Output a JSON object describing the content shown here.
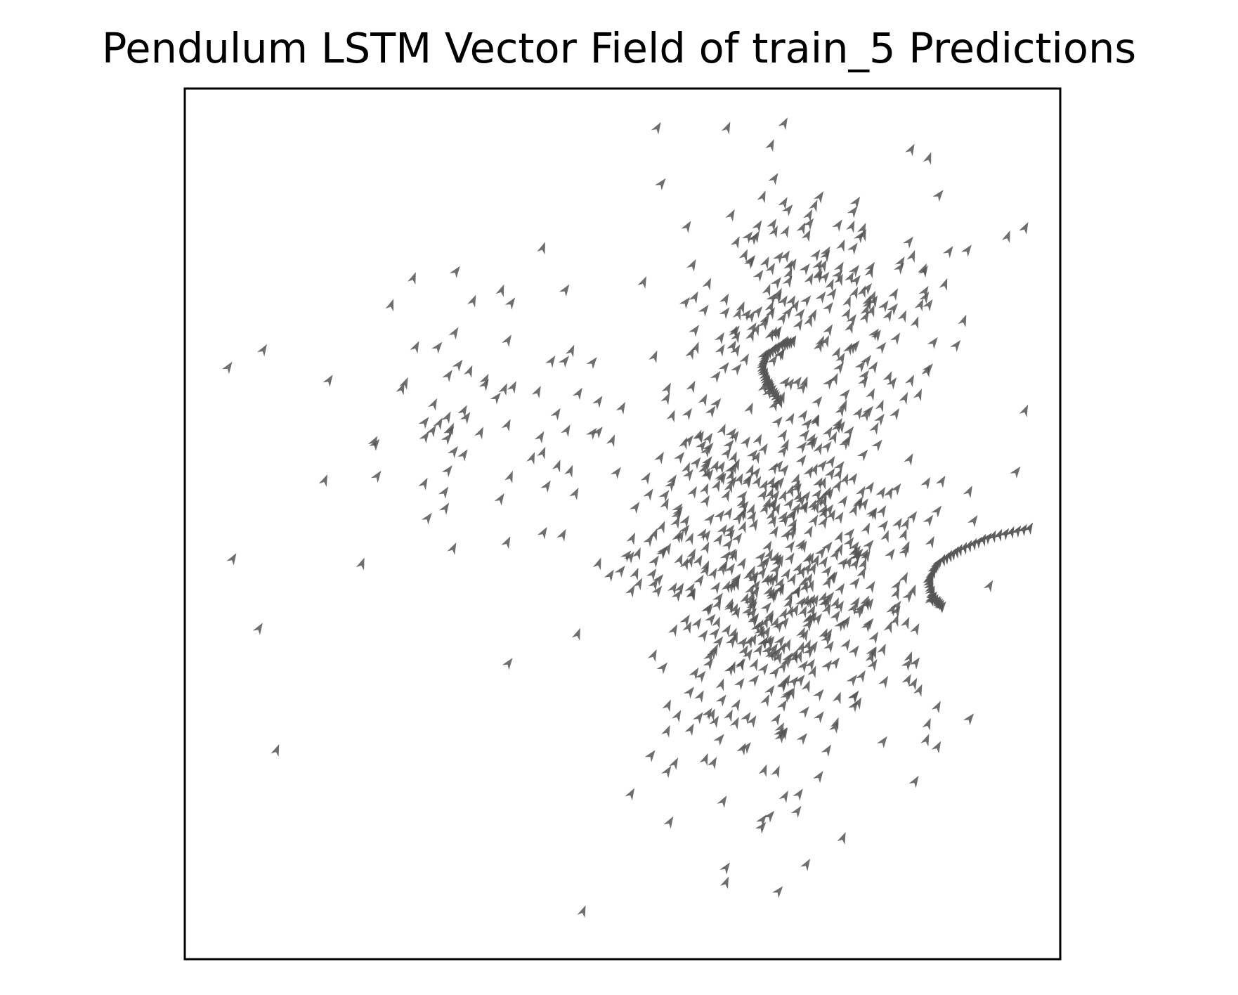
{
  "chart_data": {
    "type": "quiver",
    "title": "Pendulum LSTM Vector Field of train_5  Predictions",
    "xlabel": "",
    "ylabel": "",
    "xlim": [
      0,
      100
    ],
    "ylim": [
      0,
      100
    ],
    "ticks": "none",
    "grid": false,
    "legend": "none",
    "arrow_color": "#555555",
    "frame_color": "#000000",
    "arrow_direction_deg": 60,
    "seed": 5,
    "clusters": [
      {
        "cx": 68,
        "cy": 45,
        "sx": 8.5,
        "sy": 11.0,
        "n": 620
      },
      {
        "cx": 72,
        "cy": 76,
        "sx": 8.0,
        "sy": 6.5,
        "n": 180
      },
      {
        "cx": 37,
        "cy": 62,
        "sx": 8.5,
        "sy": 7.0,
        "n": 70
      }
    ],
    "outliers": [
      [
        5,
        68
      ],
      [
        9,
        70
      ],
      [
        16.5,
        66.5
      ],
      [
        16,
        55
      ],
      [
        22,
        55.5
      ],
      [
        27.5,
        60
      ],
      [
        31,
        79
      ],
      [
        5.5,
        46
      ],
      [
        8.5,
        38
      ],
      [
        10.5,
        24
      ],
      [
        37,
        34
      ],
      [
        41,
        49
      ],
      [
        45.5,
        5.5
      ],
      [
        51,
        19
      ],
      [
        56,
        22.5
      ],
      [
        66,
        16
      ],
      [
        70,
        17
      ],
      [
        72.5,
        21
      ],
      [
        86,
        29
      ],
      [
        54,
        95.5
      ],
      [
        62,
        95.5
      ],
      [
        68.5,
        96
      ],
      [
        67,
        93.5
      ],
      [
        83,
        93
      ],
      [
        85,
        92
      ],
      [
        96,
        84
      ],
      [
        96,
        63
      ],
      [
        86,
        51.5
      ],
      [
        94,
        83
      ],
      [
        95,
        56
      ]
    ],
    "trajectories": [
      {
        "points": [
          [
            96.5,
            49.5
          ],
          [
            92,
            48.5
          ],
          [
            88.5,
            47
          ],
          [
            86,
            45.5
          ],
          [
            85,
            43.5
          ],
          [
            85.5,
            41.5
          ],
          [
            86.5,
            40.5
          ]
        ],
        "count": 40
      },
      {
        "points": [
          [
            68,
            64
          ],
          [
            67,
            65.5
          ],
          [
            66.5,
            66.5
          ],
          [
            66,
            68
          ],
          [
            66.5,
            69.5
          ],
          [
            68,
            70.5
          ],
          [
            69.5,
            71
          ]
        ],
        "count": 34
      }
    ]
  }
}
